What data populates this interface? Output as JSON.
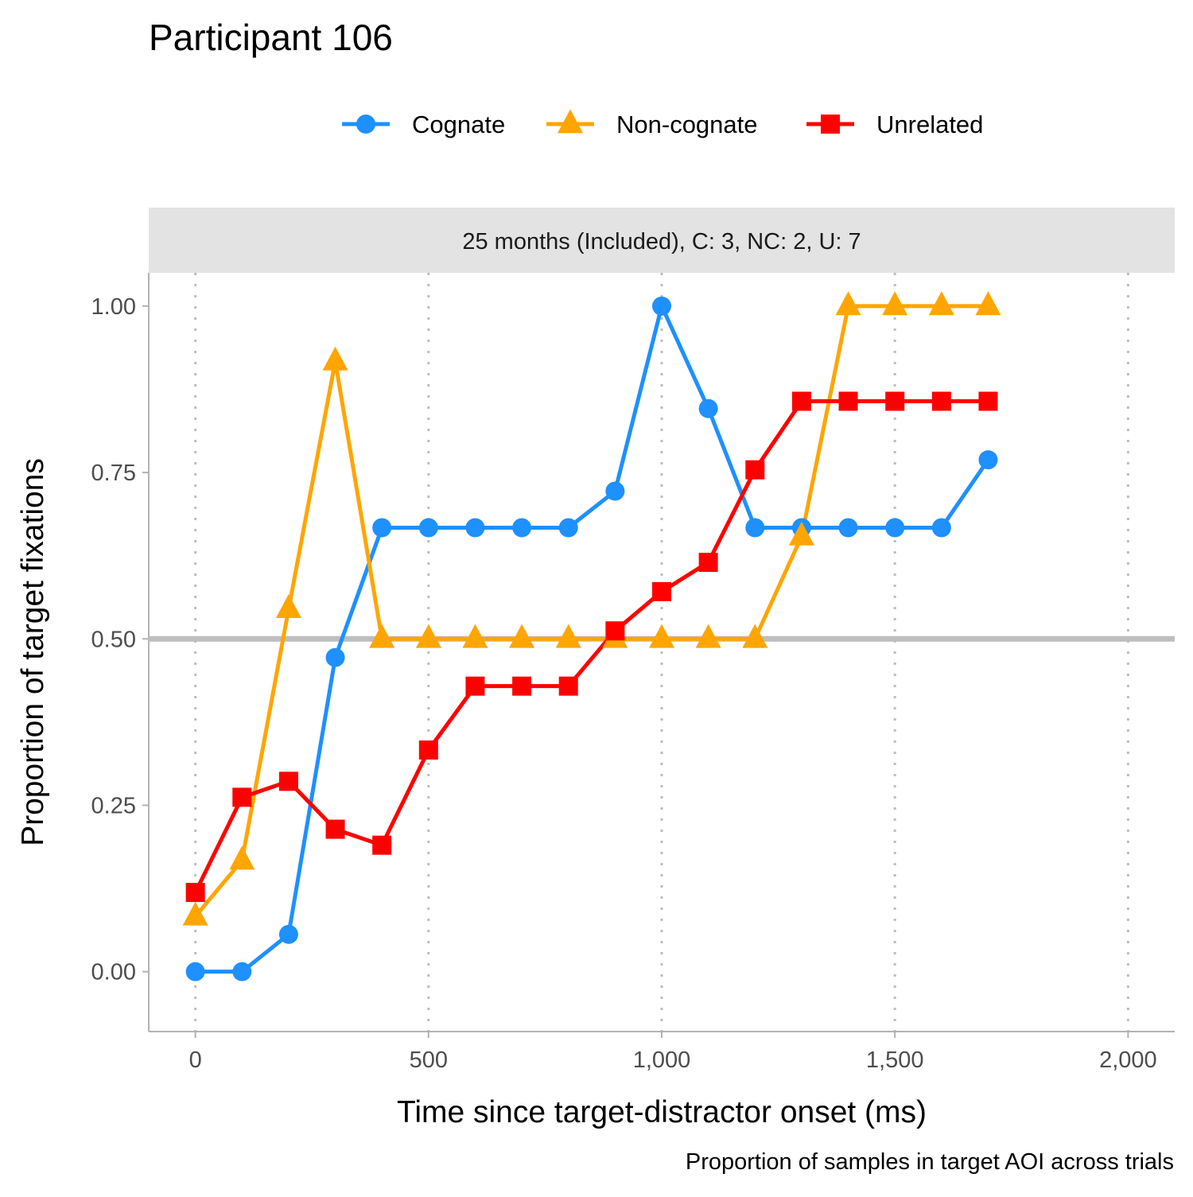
{
  "chart_data": {
    "type": "line",
    "title": "Participant 106",
    "facet_label": "25 months (Included), C: 3, NC: 2, U: 7",
    "xlabel": "Time since target-distractor onset (ms)",
    "ylabel": "Proportion of target fixations",
    "caption": "Proportion of samples in target AOI across trials",
    "xlim": [
      -100,
      2100
    ],
    "ylim": [
      -0.09,
      1.05
    ],
    "x_ticks": [
      0,
      500,
      1000,
      1500,
      2000
    ],
    "x_tick_labels": [
      "0",
      "500",
      "1,000",
      "1,500",
      "2,000"
    ],
    "y_ticks": [
      0,
      0.25,
      0.5,
      0.75,
      1.0
    ],
    "y_tick_labels": [
      "0.00",
      "0.25",
      "0.50",
      "0.75",
      "1.00"
    ],
    "reference_line_y": 0.5,
    "grid": "vertical dotted major gridlines",
    "legend_position": "top",
    "series": [
      {
        "name": "Cognate",
        "color": "#1e90ff",
        "marker": "circle",
        "x": [
          0,
          100,
          200,
          300,
          400,
          500,
          600,
          700,
          800,
          900,
          1000,
          1100,
          1200,
          1300,
          1400,
          1500,
          1600,
          1700
        ],
        "y": [
          0.0,
          0.0,
          0.056,
          0.472,
          0.667,
          0.667,
          0.667,
          0.667,
          0.667,
          0.722,
          1.0,
          0.846,
          0.667,
          0.667,
          0.667,
          0.667,
          0.667,
          0.769
        ]
      },
      {
        "name": "Non-cognate",
        "color": "#ffa500",
        "marker": "triangle",
        "x": [
          0,
          100,
          200,
          300,
          400,
          500,
          600,
          700,
          800,
          900,
          1000,
          1100,
          1200,
          1300,
          1400,
          1500,
          1600,
          1700
        ],
        "y": [
          0.083,
          0.167,
          0.545,
          0.917,
          0.5,
          0.5,
          0.5,
          0.5,
          0.5,
          0.5,
          0.5,
          0.5,
          0.5,
          0.654,
          1.0,
          1.0,
          1.0,
          1.0
        ]
      },
      {
        "name": "Unrelated",
        "color": "#ff0000",
        "marker": "square",
        "x": [
          0,
          100,
          200,
          300,
          400,
          500,
          600,
          700,
          800,
          900,
          1000,
          1100,
          1200,
          1300,
          1400,
          1500,
          1600,
          1700
        ],
        "y": [
          0.119,
          0.262,
          0.286,
          0.214,
          0.19,
          0.333,
          0.429,
          0.429,
          0.429,
          0.512,
          0.571,
          0.615,
          0.754,
          0.857,
          0.857,
          0.857,
          0.857,
          0.857
        ]
      }
    ]
  }
}
